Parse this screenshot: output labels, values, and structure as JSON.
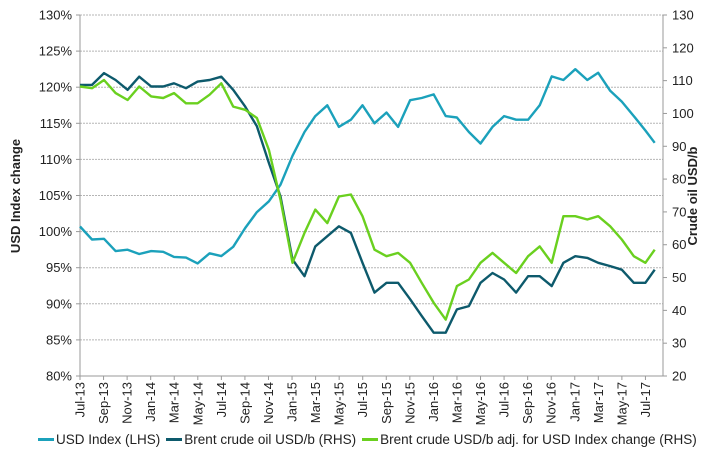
{
  "chart_data": {
    "type": "line",
    "title": "",
    "ylabel_left": "USD Index change",
    "ylabel_right": "Crude oil USD/b",
    "ylim_left": [
      80,
      130
    ],
    "ylim_right": [
      20,
      130
    ],
    "yticks_left": [
      "80%",
      "85%",
      "90%",
      "95%",
      "100%",
      "105%",
      "110%",
      "115%",
      "120%",
      "125%",
      "130%"
    ],
    "yticks_right": [
      "20",
      "30",
      "40",
      "50",
      "60",
      "70",
      "80",
      "90",
      "100",
      "110",
      "120",
      "130"
    ],
    "xticks": [
      "Jul-13",
      "Sep-13",
      "Nov-13",
      "Jan-14",
      "Mar-14",
      "May-14",
      "Jul-14",
      "Sep-14",
      "Nov-14",
      "Jan-15",
      "Mar-15",
      "May-15",
      "Jul-15",
      "Sep-15",
      "Nov-15",
      "Jan-16",
      "Mar-16",
      "May-16",
      "Jul-16",
      "Sep-16",
      "Nov-16",
      "Jan-17",
      "Mar-17",
      "May-17",
      "Jul-17"
    ],
    "grid": true,
    "legend_placement": "bottom",
    "x": [
      "2013-07",
      "2013-08",
      "2013-09",
      "2013-10",
      "2013-11",
      "2013-12",
      "2014-01",
      "2014-02",
      "2014-03",
      "2014-04",
      "2014-05",
      "2014-06",
      "2014-07",
      "2014-08",
      "2014-09",
      "2014-10",
      "2014-11",
      "2014-12",
      "2015-01",
      "2015-02",
      "2015-03",
      "2015-04",
      "2015-05",
      "2015-06",
      "2015-07",
      "2015-08",
      "2015-09",
      "2015-10",
      "2015-11",
      "2015-12",
      "2016-01",
      "2016-02",
      "2016-03",
      "2016-04",
      "2016-05",
      "2016-06",
      "2016-07",
      "2016-08",
      "2016-09",
      "2016-10",
      "2016-11",
      "2016-12",
      "2017-01",
      "2017-02",
      "2017-03",
      "2017-04",
      "2017-05",
      "2017-06",
      "2017-07",
      "2017-07-25"
    ],
    "series": [
      {
        "name": "USD Index (LHS)",
        "axis": "left",
        "color": "#1ba1bb",
        "values": [
          100.7,
          98.9,
          99.0,
          97.3,
          97.5,
          96.9,
          97.3,
          97.2,
          96.5,
          96.4,
          95.6,
          97.0,
          96.6,
          97.9,
          100.5,
          102.7,
          104.2,
          106.5,
          110.5,
          113.8,
          116.0,
          117.5,
          114.5,
          115.5,
          117.5,
          115.0,
          116.5,
          114.5,
          118.2,
          118.5,
          119.0,
          116.0,
          115.8,
          113.8,
          112.2,
          114.5,
          116.0,
          115.5,
          115.5,
          117.5,
          121.5,
          121.0,
          122.5,
          121.0,
          122.0,
          119.5,
          118.0,
          116.0,
          114.0,
          112.3
        ]
      },
      {
        "name": "Brent crude oil USD/b (RHS)",
        "axis": "right",
        "color": "#0d5a6c",
        "values": [
          108.7,
          108.7,
          112.3,
          110.2,
          107.2,
          111.2,
          108.2,
          108.2,
          109.2,
          107.7,
          109.7,
          110.2,
          111.2,
          107.2,
          102.1,
          96.1,
          84.9,
          74.7,
          55.5,
          50.4,
          59.5,
          62.6,
          65.6,
          63.6,
          54.5,
          45.4,
          48.4,
          48.4,
          43.4,
          38.3,
          33.2,
          33.2,
          40.3,
          41.3,
          48.4,
          51.4,
          49.4,
          45.4,
          50.4,
          50.4,
          47.4,
          54.5,
          56.5,
          56.0,
          54.5,
          53.5,
          52.4,
          48.4,
          48.4,
          52.4
        ]
      },
      {
        "name": "Brent crude USD/b adj. for USD Index change (RHS)",
        "axis": "right",
        "color": "#6ad01f",
        "values": [
          108.2,
          107.7,
          110.2,
          106.2,
          104.1,
          108.2,
          105.2,
          104.7,
          106.2,
          103.1,
          103.1,
          105.7,
          109.2,
          102.1,
          101.1,
          98.6,
          88.9,
          73.7,
          54.5,
          63.6,
          70.7,
          66.6,
          74.7,
          75.3,
          68.7,
          58.5,
          56.5,
          57.5,
          54.5,
          48.4,
          42.3,
          37.2,
          47.4,
          49.4,
          54.5,
          57.5,
          54.5,
          51.4,
          56.5,
          59.5,
          54.5,
          68.7,
          68.7,
          67.7,
          68.7,
          65.6,
          61.6,
          56.5,
          54.5,
          58.5
        ]
      }
    ]
  }
}
